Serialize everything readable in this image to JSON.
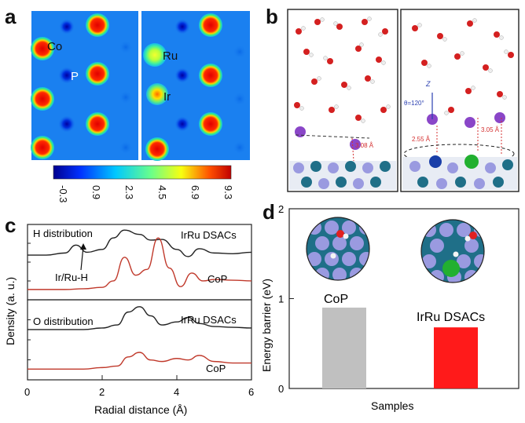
{
  "panels": {
    "a": "a",
    "b": "b",
    "c": "c",
    "d": "d"
  },
  "panel_a": {
    "labels_left": [
      "Co",
      "P"
    ],
    "labels_right": [
      "Ru",
      "Ir"
    ],
    "colorbar_ticks": [
      "-0.3",
      "0.9",
      "2.3",
      "4.5",
      "6.9",
      "9.3"
    ]
  },
  "panel_b": {
    "annotations": [
      "3.08 Å",
      "2.55 Å",
      "3.05 Å",
      "θ=120°",
      "Z"
    ]
  },
  "chart_data": [
    {
      "type": "line",
      "title": "",
      "xlabel": "Radial distance (Å)",
      "ylabel": "Density (a. u.)",
      "xlim": [
        0,
        6
      ],
      "x_ticks": [
        "0",
        "2",
        "4",
        "6"
      ],
      "subplots": [
        {
          "label": "H distribution",
          "annotation": "Ir/Ru-H",
          "series": [
            {
              "name": "IrRu DSACs",
              "color": "#222222",
              "x": [
                0,
                0.5,
                1.0,
                1.3,
                1.6,
                2.0,
                2.3,
                2.6,
                3.0,
                3.3,
                3.6,
                4.0,
                4.3,
                4.6,
                5.0,
                5.5,
                6.0
              ],
              "y": [
                0.58,
                0.58,
                0.61,
                0.72,
                0.62,
                0.66,
                0.82,
                0.93,
                0.87,
                0.79,
                0.8,
                0.66,
                0.56,
                0.67,
                0.61,
                0.6,
                0.62
              ]
            },
            {
              "name": "CoP",
              "color": "#c0392b",
              "x": [
                0,
                0.5,
                1.0,
                1.5,
                2.0,
                2.3,
                2.6,
                2.9,
                3.2,
                3.5,
                3.8,
                4.1,
                4.4,
                4.7,
                5.0,
                5.5,
                6.0
              ],
              "y": [
                0.1,
                0.1,
                0.1,
                0.11,
                0.13,
                0.22,
                0.55,
                0.3,
                0.38,
                0.82,
                0.4,
                0.14,
                0.33,
                0.22,
                0.24,
                0.23,
                0.22
              ]
            }
          ]
        },
        {
          "label": "O distribution",
          "series": [
            {
              "name": "IrRu DSACs",
              "color": "#222222",
              "x": [
                0,
                0.5,
                1.0,
                1.5,
                2.0,
                2.4,
                2.7,
                3.0,
                3.3,
                3.6,
                4.0,
                4.3,
                4.6,
                5.0,
                5.5,
                6.0
              ],
              "y": [
                0.62,
                0.62,
                0.62,
                0.62,
                0.64,
                0.68,
                0.85,
                0.92,
                0.8,
                0.68,
                0.72,
                0.78,
                0.7,
                0.66,
                0.65,
                0.64
              ]
            },
            {
              "name": "CoP",
              "color": "#c0392b",
              "x": [
                0,
                0.5,
                1.0,
                1.5,
                2.0,
                2.4,
                2.7,
                3.0,
                3.3,
                3.6,
                4.0,
                4.3,
                4.6,
                5.0,
                5.5,
                6.0
              ],
              "y": [
                0.1,
                0.1,
                0.1,
                0.1,
                0.12,
                0.14,
                0.26,
                0.32,
                0.22,
                0.2,
                0.24,
                0.22,
                0.28,
                0.2,
                0.18,
                0.18
              ]
            }
          ]
        }
      ]
    },
    {
      "type": "bar",
      "title": "",
      "xlabel": "Samples",
      "ylabel": "Energy barrier (eV)",
      "ylim": [
        0,
        2
      ],
      "y_ticks": [
        "0",
        "1",
        "2"
      ],
      "categories": [
        "CoP",
        "IrRu DSACs"
      ],
      "values": [
        0.9,
        0.68
      ],
      "colors": [
        "#c0c0c0",
        "#ff1a1a"
      ]
    }
  ]
}
